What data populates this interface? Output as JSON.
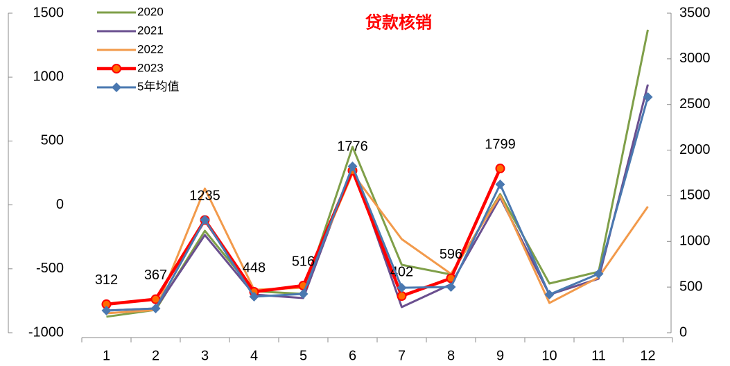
{
  "chart_data": {
    "type": "line",
    "title": "贷款核销",
    "categories": [
      "1",
      "2",
      "3",
      "4",
      "5",
      "6",
      "7",
      "8",
      "9",
      "10",
      "11",
      "12"
    ],
    "series": [
      {
        "name": "2020",
        "color": "#7f9f49",
        "axis": "y2",
        "values": [
          175,
          250,
          1116,
          455,
          425,
          2035,
          744,
          638,
          1518,
          539,
          668,
          3318
        ]
      },
      {
        "name": "2021",
        "color": "#6a4f8f",
        "axis": "y2",
        "values": [
          243,
          266,
          1070,
          418,
          380,
          1822,
          281,
          531,
          1480,
          418,
          592,
          2718
        ]
      },
      {
        "name": "2022",
        "color": "#f29a4b",
        "axis": "y2",
        "values": [
          213,
          250,
          1579,
          471,
          493,
          1746,
          1025,
          645,
          1503,
          326,
          607,
          1382
        ]
      },
      {
        "name": "2023",
        "color": "#ff0000",
        "axis": "y2",
        "marker": "circle",
        "data_labels": true,
        "values": [
          312,
          367,
          1235,
          448,
          516,
          1776,
          402,
          596,
          1799,
          null,
          null,
          null
        ]
      },
      {
        "name": "5年均值",
        "color": "#4a78b0",
        "axis": "y2",
        "marker": "diamond",
        "values": [
          243,
          266,
          1237,
          395,
          425,
          1822,
          493,
          501,
          1625,
          418,
          645,
          2581
        ]
      }
    ],
    "ylim": [
      -1000,
      1500
    ],
    "yticks": [
      -1000,
      -500,
      0,
      500,
      1000,
      1500
    ],
    "y2lim": [
      0,
      3500
    ],
    "y2ticks": [
      0,
      500,
      1000,
      1500,
      2000,
      2500,
      3000,
      3500
    ],
    "legend": "top-left"
  }
}
